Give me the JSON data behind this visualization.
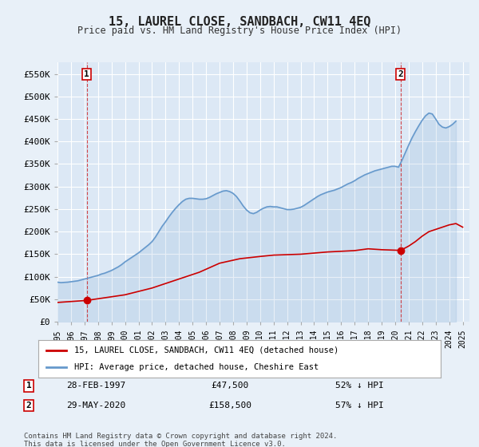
{
  "title": "15, LAUREL CLOSE, SANDBACH, CW11 4EQ",
  "subtitle": "Price paid vs. HM Land Registry's House Price Index (HPI)",
  "xlabel": "",
  "ylabel": "",
  "ylim": [
    0,
    575000
  ],
  "xlim_start": 1995.0,
  "xlim_end": 2025.5,
  "yticks": [
    0,
    50000,
    100000,
    150000,
    200000,
    250000,
    300000,
    350000,
    400000,
    450000,
    500000,
    550000
  ],
  "ytick_labels": [
    "£0",
    "£50K",
    "£100K",
    "£150K",
    "£200K",
    "£250K",
    "£300K",
    "£350K",
    "£400K",
    "£450K",
    "£500K",
    "£550K"
  ],
  "xticks": [
    1995,
    1996,
    1997,
    1998,
    1999,
    2000,
    2001,
    2002,
    2003,
    2004,
    2005,
    2006,
    2007,
    2008,
    2009,
    2010,
    2011,
    2012,
    2013,
    2014,
    2015,
    2016,
    2017,
    2018,
    2019,
    2020,
    2021,
    2022,
    2023,
    2024,
    2025
  ],
  "background_color": "#e8f0f8",
  "plot_bg_color": "#dce8f5",
  "grid_color": "#ffffff",
  "hpi_color": "#6699cc",
  "price_color": "#cc0000",
  "marker_color": "#cc0000",
  "sale1_x": 1997.16,
  "sale1_y": 47500,
  "sale1_label": "1",
  "sale1_date": "28-FEB-1997",
  "sale1_price": "£47,500",
  "sale1_hpi": "52% ↓ HPI",
  "sale2_x": 2020.41,
  "sale2_y": 158500,
  "sale2_label": "2",
  "sale2_date": "29-MAY-2020",
  "sale2_price": "£158,500",
  "sale2_hpi": "57% ↓ HPI",
  "legend_line1": "15, LAUREL CLOSE, SANDBACH, CW11 4EQ (detached house)",
  "legend_line2": "HPI: Average price, detached house, Cheshire East",
  "footer": "Contains HM Land Registry data © Crown copyright and database right 2024.\nThis data is licensed under the Open Government Licence v3.0.",
  "hpi_data_x": [
    1995.0,
    1995.25,
    1995.5,
    1995.75,
    1996.0,
    1996.25,
    1996.5,
    1996.75,
    1997.0,
    1997.25,
    1997.5,
    1997.75,
    1998.0,
    1998.25,
    1998.5,
    1998.75,
    1999.0,
    1999.25,
    1999.5,
    1999.75,
    2000.0,
    2000.25,
    2000.5,
    2000.75,
    2001.0,
    2001.25,
    2001.5,
    2001.75,
    2002.0,
    2002.25,
    2002.5,
    2002.75,
    2003.0,
    2003.25,
    2003.5,
    2003.75,
    2004.0,
    2004.25,
    2004.5,
    2004.75,
    2005.0,
    2005.25,
    2005.5,
    2005.75,
    2006.0,
    2006.25,
    2006.5,
    2006.75,
    2007.0,
    2007.25,
    2007.5,
    2007.75,
    2008.0,
    2008.25,
    2008.5,
    2008.75,
    2009.0,
    2009.25,
    2009.5,
    2009.75,
    2010.0,
    2010.25,
    2010.5,
    2010.75,
    2011.0,
    2011.25,
    2011.5,
    2011.75,
    2012.0,
    2012.25,
    2012.5,
    2012.75,
    2013.0,
    2013.25,
    2013.5,
    2013.75,
    2014.0,
    2014.25,
    2014.5,
    2014.75,
    2015.0,
    2015.25,
    2015.5,
    2015.75,
    2016.0,
    2016.25,
    2016.5,
    2016.75,
    2017.0,
    2017.25,
    2017.5,
    2017.75,
    2018.0,
    2018.25,
    2018.5,
    2018.75,
    2019.0,
    2019.25,
    2019.5,
    2019.75,
    2020.0,
    2020.25,
    2020.5,
    2020.75,
    2021.0,
    2021.25,
    2021.5,
    2021.75,
    2022.0,
    2022.25,
    2022.5,
    2022.75,
    2023.0,
    2023.25,
    2023.5,
    2023.75,
    2024.0,
    2024.25,
    2024.5
  ],
  "hpi_data_y": [
    88000,
    87000,
    87500,
    88000,
    89000,
    90000,
    91000,
    93000,
    95000,
    97000,
    99000,
    101000,
    103000,
    106000,
    108000,
    111000,
    114000,
    118000,
    122000,
    127000,
    133000,
    138000,
    143000,
    148000,
    153000,
    159000,
    165000,
    171000,
    178000,
    188000,
    200000,
    212000,
    222000,
    233000,
    243000,
    252000,
    260000,
    267000,
    272000,
    274000,
    274000,
    273000,
    272000,
    272000,
    273000,
    276000,
    280000,
    284000,
    287000,
    290000,
    291000,
    289000,
    285000,
    278000,
    268000,
    257000,
    248000,
    242000,
    240000,
    243000,
    248000,
    252000,
    255000,
    256000,
    255000,
    255000,
    253000,
    251000,
    249000,
    249000,
    250000,
    252000,
    254000,
    258000,
    263000,
    268000,
    273000,
    278000,
    282000,
    285000,
    288000,
    290000,
    292000,
    295000,
    298000,
    302000,
    306000,
    309000,
    313000,
    318000,
    322000,
    326000,
    329000,
    332000,
    335000,
    337000,
    339000,
    341000,
    343000,
    345000,
    345000,
    343000,
    358000,
    375000,
    392000,
    408000,
    422000,
    435000,
    447000,
    457000,
    463000,
    461000,
    450000,
    438000,
    432000,
    430000,
    433000,
    438000,
    445000
  ],
  "price_line_x": [
    1995.0,
    1997.16,
    2000.0,
    2002.0,
    2004.0,
    2005.5,
    2007.0,
    2008.5,
    2010.0,
    2011.0,
    2013.0,
    2015.0,
    2017.0,
    2018.0,
    2019.0,
    2020.41,
    2021.0,
    2021.5,
    2022.0,
    2022.5,
    2023.0,
    2023.5,
    2024.0,
    2024.5,
    2025.0
  ],
  "price_line_y": [
    43000,
    47500,
    60000,
    75000,
    95000,
    110000,
    130000,
    140000,
    145000,
    148000,
    150000,
    155000,
    158000,
    162000,
    160000,
    158500,
    168000,
    178000,
    190000,
    200000,
    205000,
    210000,
    215000,
    218000,
    210000
  ]
}
